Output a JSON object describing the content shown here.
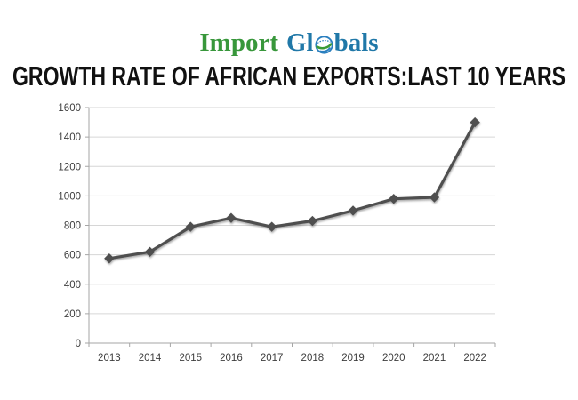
{
  "logo": {
    "import_text": "Import",
    "globals_prefix": "Gl",
    "globals_suffix": "bals",
    "import_color": "#38973b",
    "globals_color": "#2078a8",
    "globe_outline_color": "#2a7fbf",
    "globe_swirl_color": "#3a9a35"
  },
  "title": "GROWTH RATE OF AFRICAN EXPORTS:LAST 10 YEARS",
  "chart_data": {
    "type": "line",
    "title": "GROWTH RATE OF AFRICAN EXPORTS:LAST 10 YEARS",
    "categories": [
      "2013",
      "2014",
      "2015",
      "2016",
      "2017",
      "2018",
      "2019",
      "2020",
      "2021",
      "2022"
    ],
    "values": [
      575,
      620,
      790,
      850,
      790,
      830,
      900,
      980,
      990,
      1500
    ],
    "xlabel": "",
    "ylabel": "",
    "ylim": [
      0,
      1600
    ],
    "ytick_step": 200,
    "yticks": [
      0,
      200,
      400,
      600,
      800,
      1000,
      1200,
      1400,
      1600
    ],
    "grid": true,
    "legend": "none",
    "marker": "diamond",
    "line_color": "#4f4f4f",
    "gridline_color": "#d6d6d6",
    "axis_color": "#a6a6a6",
    "tick_label_color": "#3d3d3d"
  }
}
